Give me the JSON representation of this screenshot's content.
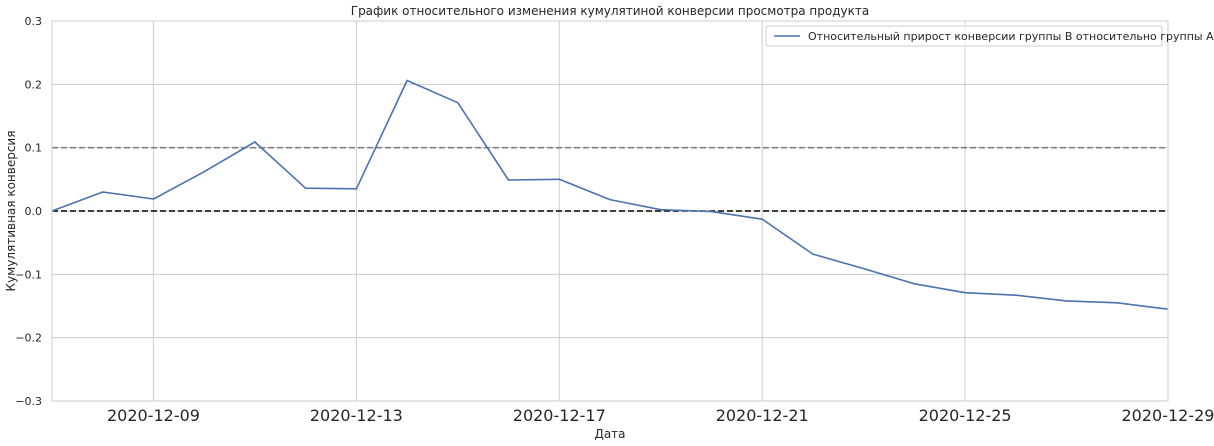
{
  "chart_data": {
    "type": "line",
    "title": "График относительного изменения кумулятиной конверсии просмотра продукта",
    "xlabel": "Дата",
    "ylabel": "Кумулятивная конверсия",
    "xlim": [
      "2020-12-07",
      "2020-12-29"
    ],
    "ylim": [
      -0.3,
      0.3
    ],
    "x_ticks": [
      "2020-12-09",
      "2020-12-13",
      "2020-12-17",
      "2020-12-21",
      "2020-12-25",
      "2020-12-29"
    ],
    "y_ticks": [
      -0.3,
      -0.2,
      -0.1,
      0.0,
      0.1,
      0.2,
      0.3
    ],
    "y_tick_labels": [
      "−0.3",
      "−0.2",
      "−0.1",
      "0.0",
      "0.1",
      "0.2",
      "0.3"
    ],
    "grid": true,
    "legend_position": "top-right",
    "series": [
      {
        "name": "Относительный прирост конверсии группы B относительно группы A",
        "color": "#4c72b0",
        "x": [
          "2020-12-07",
          "2020-12-08",
          "2020-12-09",
          "2020-12-10",
          "2020-12-11",
          "2020-12-12",
          "2020-12-13",
          "2020-12-14",
          "2020-12-15",
          "2020-12-16",
          "2020-12-17",
          "2020-12-18",
          "2020-12-19",
          "2020-12-20",
          "2020-12-21",
          "2020-12-22",
          "2020-12-23",
          "2020-12-24",
          "2020-12-25",
          "2020-12-26",
          "2020-12-27",
          "2020-12-28",
          "2020-12-29"
        ],
        "values": [
          0.0,
          0.03,
          0.019,
          0.062,
          0.109,
          0.036,
          0.035,
          0.206,
          0.171,
          0.049,
          0.05,
          0.018,
          0.002,
          -0.001,
          -0.013,
          -0.068,
          -0.091,
          -0.115,
          -0.129,
          -0.133,
          -0.142,
          -0.145,
          -0.155
        ]
      }
    ],
    "reference_lines": [
      {
        "y": 0.0,
        "color": "#000000",
        "style": "dashed"
      },
      {
        "y": 0.1,
        "color": "#808080",
        "style": "dashed"
      }
    ]
  }
}
